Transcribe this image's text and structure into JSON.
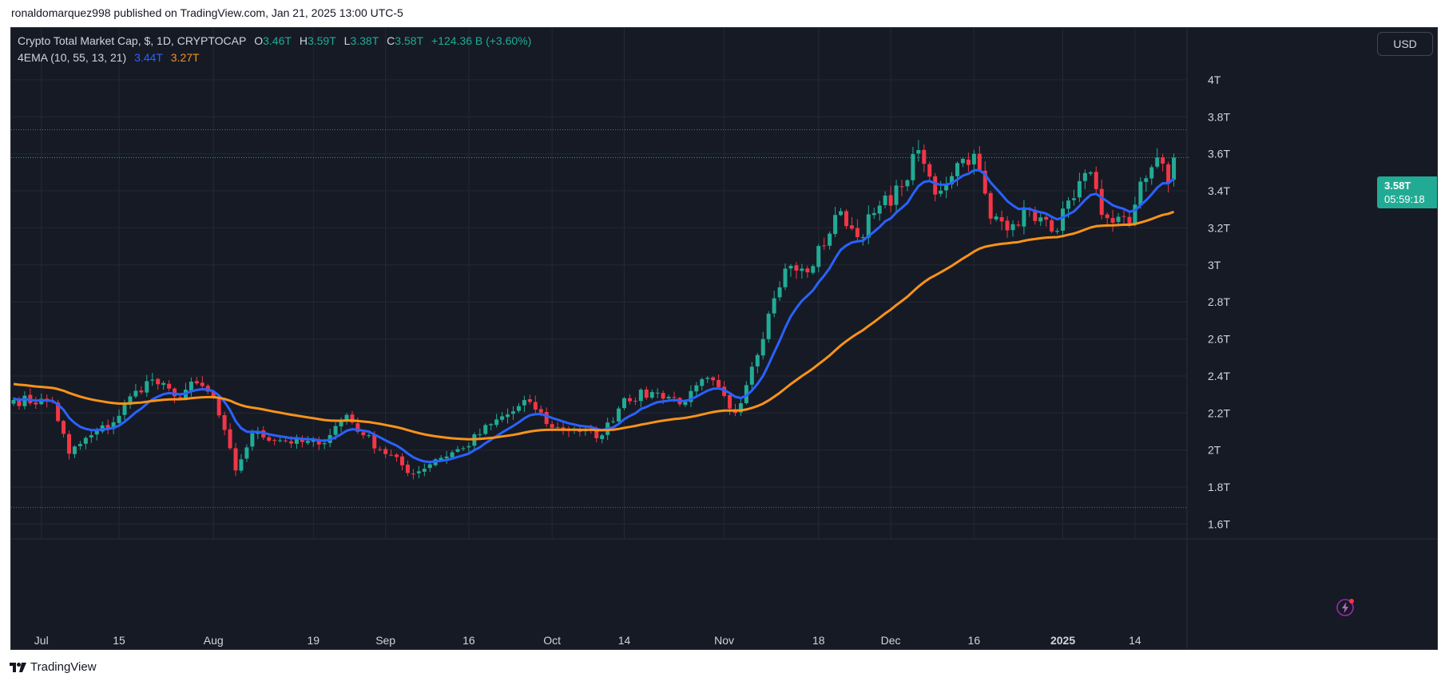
{
  "header": {
    "publisher_line": "ronaldomarquez998 published on TradingView.com, Jan 21, 2025 13:00 UTC-5"
  },
  "legend": {
    "symbol": "Crypto Total Market Cap, $, 1D, CRYPTOCAP",
    "open_label": "O",
    "open_value": "3.46T",
    "high_label": "H",
    "high_value": "3.59T",
    "low_label": "L",
    "low_value": "3.38T",
    "close_label": "C",
    "close_value": "3.58T",
    "change": "+124.36 B (+3.60%)",
    "indicator_name": "4EMA (10, 55, 13, 21)",
    "ema_fast_value": "3.44T",
    "ema_slow_value": "3.27T"
  },
  "toolbar": {
    "currency_label": "USD"
  },
  "price_badge": {
    "price": "3.58T",
    "countdown": "05:59:18"
  },
  "footer": {
    "brand": "TradingView"
  },
  "colors": {
    "background": "#161a25",
    "up": "#22ab94",
    "down": "#f23645",
    "ema_fast": "#2962ff",
    "ema_slow": "#f7931a",
    "text": "#d1d4dc",
    "grid": "#232834"
  },
  "icons": [
    "bolt-icon",
    "tradingview-logo-icon"
  ],
  "chart_data": {
    "type": "candlestick",
    "title": "Crypto Total Market Cap, $, 1D, CRYPTOCAP",
    "y_unit": "T",
    "ylim": [
      1.52,
      4.28
    ],
    "y_ticks": [
      "4T",
      "3.8T",
      "3.6T",
      "3.4T",
      "3.2T",
      "3T",
      "2.8T",
      "2.6T",
      "2.4T",
      "2.2T",
      "2T",
      "1.8T",
      "1.6T"
    ],
    "x_ticks": [
      {
        "label": "Jul",
        "date": "2024-07-01"
      },
      {
        "label": "15",
        "date": "2024-07-15"
      },
      {
        "label": "Aug",
        "date": "2024-08-01"
      },
      {
        "label": "19",
        "date": "2024-08-19"
      },
      {
        "label": "Sep",
        "date": "2024-09-01"
      },
      {
        "label": "16",
        "date": "2024-09-16"
      },
      {
        "label": "Oct",
        "date": "2024-10-01"
      },
      {
        "label": "14",
        "date": "2024-10-14"
      },
      {
        "label": "Nov",
        "date": "2024-11-01"
      },
      {
        "label": "18",
        "date": "2024-11-18"
      },
      {
        "label": "Dec",
        "date": "2024-12-01"
      },
      {
        "label": "16",
        "date": "2024-12-16"
      },
      {
        "label": "2025",
        "date": "2025-01-01"
      },
      {
        "label": "14",
        "date": "2025-01-14"
      }
    ],
    "start_date": "2024-06-26",
    "end_date": "2025-01-21",
    "horizontal_lines": [
      3.73,
      1.69
    ],
    "current_price": 3.58,
    "grid": true,
    "anchors": [
      [
        "2024-06-26",
        2.27
      ],
      [
        "2024-07-03",
        2.26
      ],
      [
        "2024-07-06",
        1.98
      ],
      [
        "2024-07-10",
        2.08
      ],
      [
        "2024-07-14",
        2.15
      ],
      [
        "2024-07-18",
        2.32
      ],
      [
        "2024-07-21",
        2.38
      ],
      [
        "2024-07-25",
        2.29
      ],
      [
        "2024-07-29",
        2.36
      ],
      [
        "2024-08-01",
        2.28
      ],
      [
        "2024-08-05",
        1.89
      ],
      [
        "2024-08-08",
        2.09
      ],
      [
        "2024-08-14",
        2.05
      ],
      [
        "2024-08-20",
        2.03
      ],
      [
        "2024-08-25",
        2.19
      ],
      [
        "2024-08-28",
        2.08
      ],
      [
        "2024-09-06",
        1.87
      ],
      [
        "2024-09-10",
        1.95
      ],
      [
        "2024-09-15",
        2.01
      ],
      [
        "2024-09-20",
        2.14
      ],
      [
        "2024-09-27",
        2.26
      ],
      [
        "2024-10-01",
        2.12
      ],
      [
        "2024-10-05",
        2.11
      ],
      [
        "2024-10-10",
        2.08
      ],
      [
        "2024-10-14",
        2.28
      ],
      [
        "2024-10-20",
        2.31
      ],
      [
        "2024-10-25",
        2.26
      ],
      [
        "2024-10-29",
        2.39
      ],
      [
        "2024-11-03",
        2.2
      ],
      [
        "2024-11-06",
        2.45
      ],
      [
        "2024-11-10",
        2.82
      ],
      [
        "2024-11-12",
        2.98
      ],
      [
        "2024-11-16",
        2.96
      ],
      [
        "2024-11-22",
        3.29
      ],
      [
        "2024-11-25",
        3.15
      ],
      [
        "2024-11-28",
        3.28
      ],
      [
        "2024-12-03",
        3.42
      ],
      [
        "2024-12-06",
        3.62
      ],
      [
        "2024-12-09",
        3.38
      ],
      [
        "2024-12-13",
        3.55
      ],
      [
        "2024-12-16",
        3.6
      ],
      [
        "2024-12-19",
        3.25
      ],
      [
        "2024-12-23",
        3.22
      ],
      [
        "2024-12-26",
        3.3
      ],
      [
        "2024-12-30",
        3.18
      ],
      [
        "2025-01-03",
        3.36
      ],
      [
        "2025-01-06",
        3.5
      ],
      [
        "2025-01-08",
        3.27
      ],
      [
        "2025-01-13",
        3.22
      ],
      [
        "2025-01-15",
        3.45
      ],
      [
        "2025-01-18",
        3.58
      ],
      [
        "2025-01-20",
        3.44
      ],
      [
        "2025-01-21",
        3.58
      ]
    ],
    "series": [
      {
        "name": "EMA 10",
        "type": "line",
        "last_value": 3.44
      },
      {
        "name": "EMA 55",
        "type": "line",
        "last_value": 3.27
      }
    ]
  }
}
